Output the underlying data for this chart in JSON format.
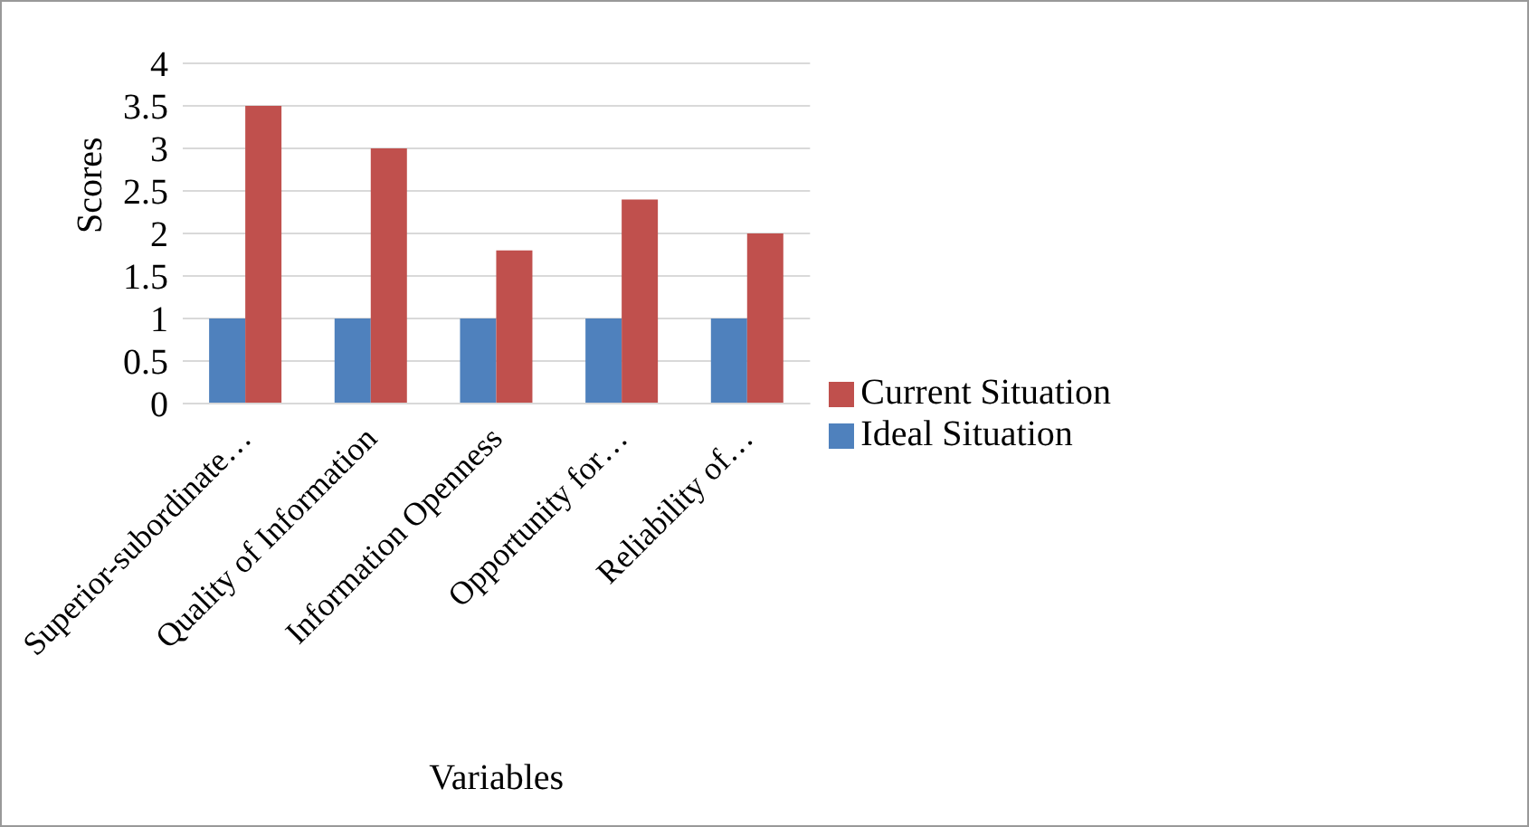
{
  "chart_data": {
    "type": "bar",
    "xlabel": "Variables",
    "ylabel": "Scores",
    "categories": [
      "Superior-subordinate…",
      "Quality of Information",
      "Information Openness",
      "Opportunity for…",
      "Reliability of…"
    ],
    "series": [
      {
        "name": "Ideal Situation",
        "color": "#4f81bd",
        "values": [
          1,
          1,
          1,
          1,
          1
        ]
      },
      {
        "name": "Current Situation",
        "color": "#c0504d",
        "values": [
          3.5,
          3,
          1.8,
          2.4,
          2
        ]
      }
    ],
    "ylim": [
      0,
      4
    ],
    "yticks": [
      0,
      0.5,
      1,
      1.5,
      2,
      2.5,
      3,
      3.5,
      4
    ],
    "grid": "y",
    "legend": "right"
  }
}
